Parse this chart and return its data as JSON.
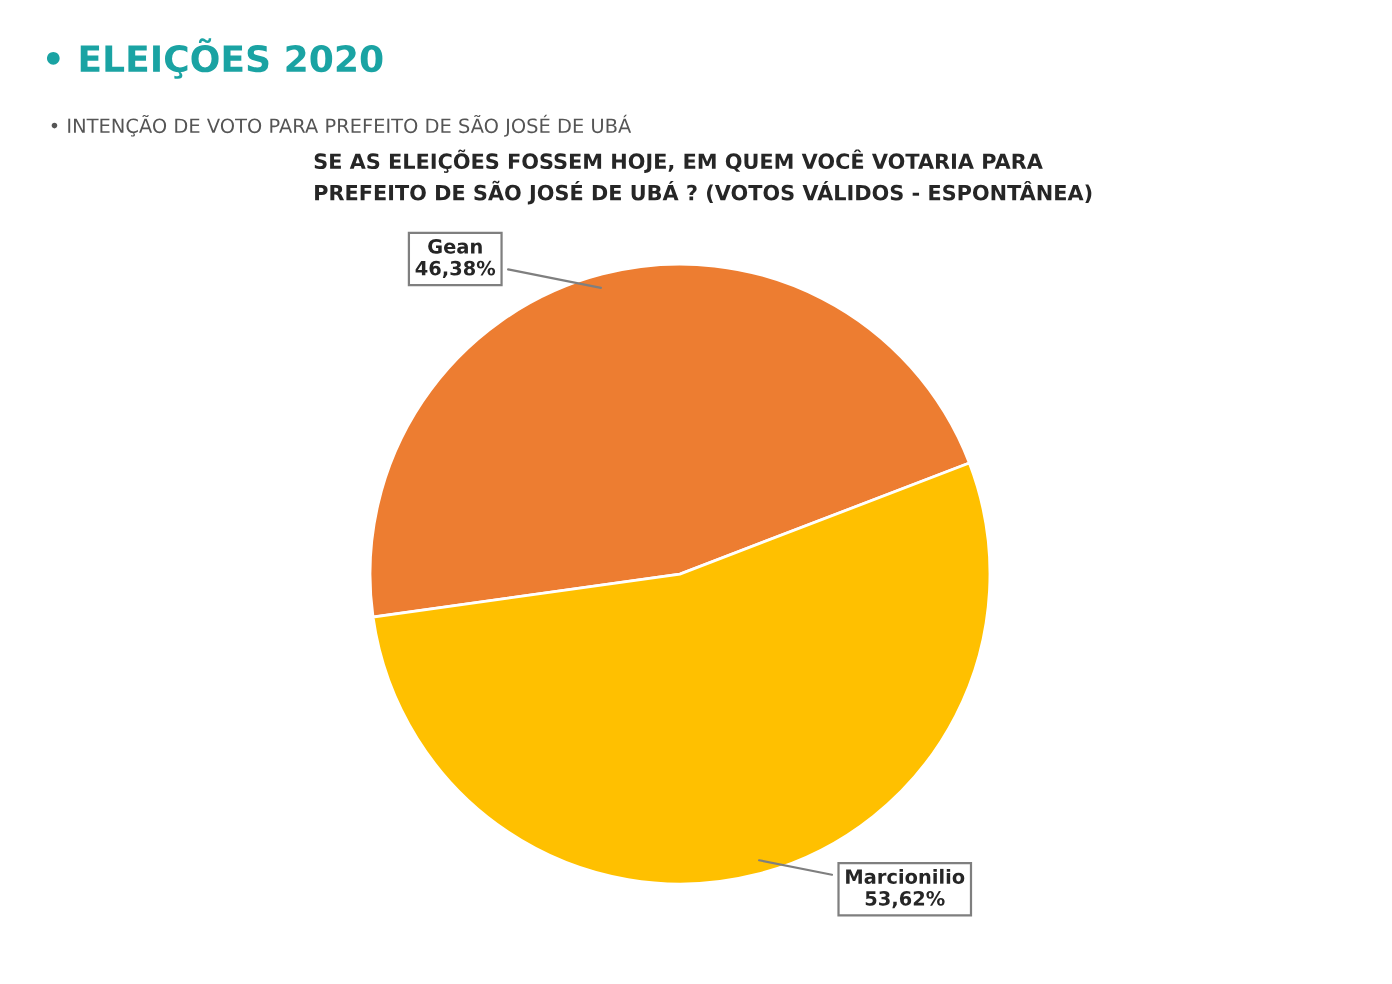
{
  "chart_data": {
    "type": "pie",
    "title": "• ELEIÇÕES 2020",
    "subtitle": "• INTENÇÃO DE VOTO PARA PREFEITO DE SÃO JOSÉ DE UBÁ",
    "annotations": [
      "SE AS ELEIÇÕES FOSSEM HOJE, EM QUEM VOCÊ VOTARIA PARA\nPREFEITO DE SÃO JOSÉ DE UBÁ ? (VOTOS VÁLIDOS - ESPONTÂNEA)"
    ],
    "categories": [
      "Gean",
      "Marcionilio"
    ],
    "values": [
      46.38,
      53.62
    ],
    "colors": [
      "#ed7d31",
      "#ffc000"
    ],
    "value_labels": [
      "46,38%",
      "53,62%"
    ],
    "legend": false
  }
}
